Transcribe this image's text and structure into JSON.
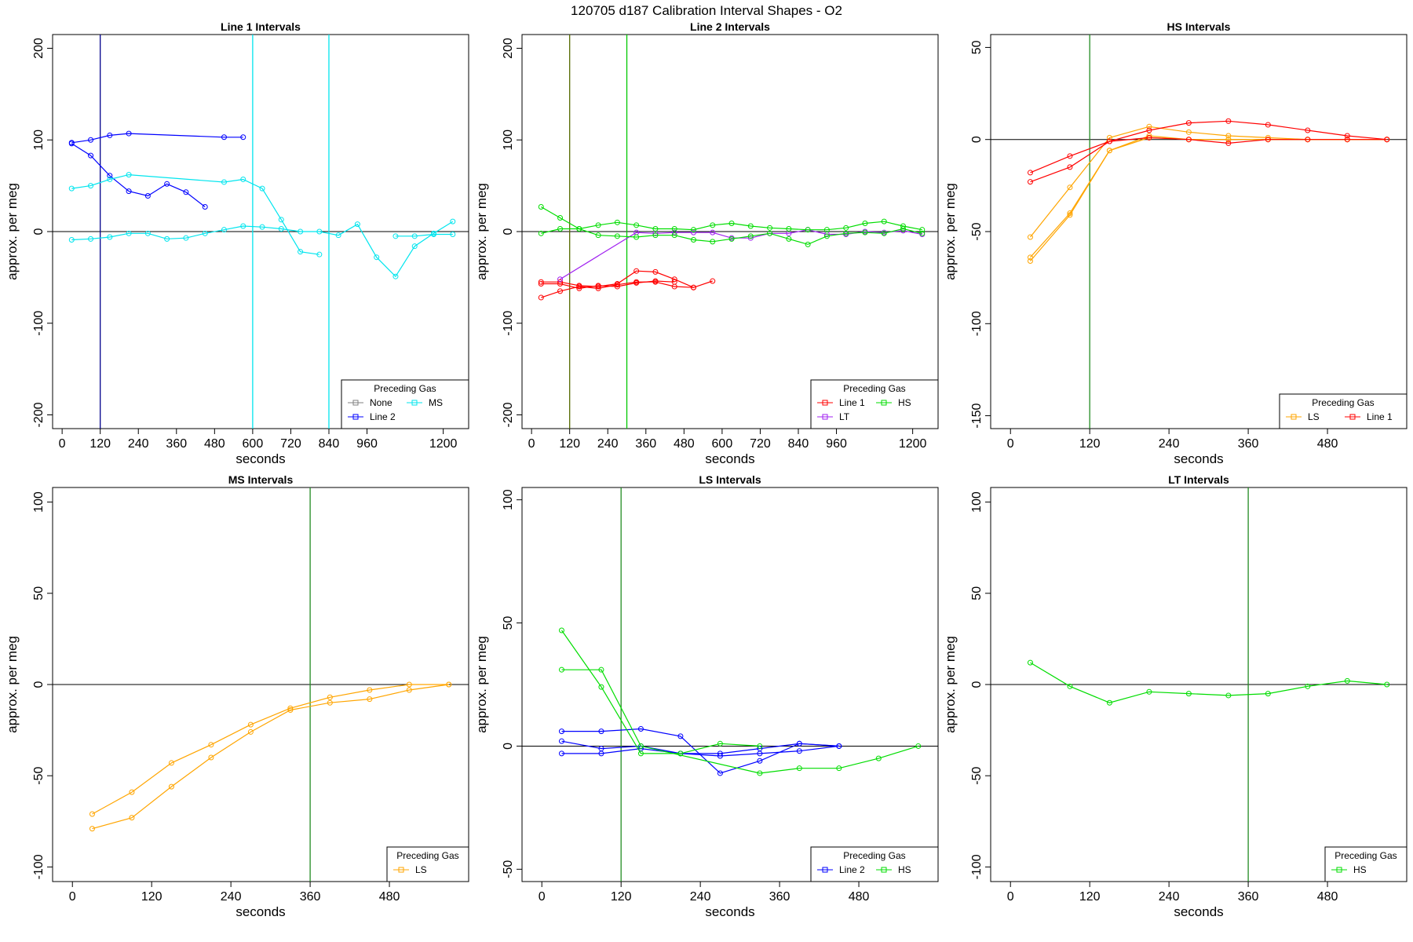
{
  "figure": {
    "title": "120705   d187   Calibration Interval Shapes - O2"
  },
  "colors": {
    "None": "#808080",
    "Line 1": "#ff0000",
    "Line 2": "#0000ff",
    "HS": "#00dd00",
    "MS": "#00e5ee",
    "LS": "#ffa500",
    "LT": "#a020f0"
  },
  "chart_data": [
    {
      "type": "line",
      "title": "Line 1 Intervals",
      "xlabel": "seconds",
      "ylabel": "approx. per meg",
      "xlim": [
        -30,
        1280
      ],
      "ylim": [
        -215,
        215
      ],
      "xticks": [
        0,
        120,
        240,
        360,
        480,
        600,
        720,
        840,
        960,
        1200
      ],
      "yticks": [
        -200,
        -100,
        0,
        100,
        200
      ],
      "vlines": [
        {
          "x": 120,
          "color": "#00008b"
        },
        {
          "x": 600,
          "color": "#00e5ee"
        },
        {
          "x": 840,
          "color": "#00e5ee"
        }
      ],
      "legend": {
        "title": "Preceding Gas",
        "position": "bottom-right",
        "columns": 2,
        "items": [
          "None",
          "Line 2",
          "MS"
        ]
      },
      "series": [
        {
          "gas": "Line 2",
          "x": [
            30,
            90,
            150,
            210,
            510,
            570
          ],
          "y": [
            97,
            100,
            105,
            107,
            103,
            103
          ]
        },
        {
          "gas": "Line 2",
          "x": [
            30,
            90,
            150,
            210,
            270,
            330,
            390,
            450
          ],
          "y": [
            96,
            83,
            61,
            44,
            39,
            52,
            43,
            27
          ]
        },
        {
          "gas": "MS",
          "x": [
            30,
            90,
            150,
            210,
            510,
            570,
            630,
            690,
            750,
            810
          ],
          "y": [
            47,
            50,
            57,
            62,
            54,
            57,
            47,
            13,
            -22,
            -25
          ]
        },
        {
          "gas": "MS",
          "x": [
            30,
            90,
            150,
            210,
            270,
            330,
            390,
            450,
            510,
            570,
            630,
            690,
            750,
            810,
            870,
            930,
            990,
            1050,
            1110,
            1170,
            1230
          ],
          "y": [
            -9,
            -8,
            -6,
            -2,
            -2,
            -8,
            -7,
            -2,
            2,
            6,
            5,
            3,
            0,
            0,
            -4,
            8,
            -28,
            -49,
            -16,
            -2,
            11
          ]
        },
        {
          "gas": "MS",
          "x": [
            1050,
            1110,
            1170,
            1230
          ],
          "y": [
            -5,
            -5,
            -3,
            -3
          ]
        }
      ]
    },
    {
      "type": "line",
      "title": "Line 2 Intervals",
      "xlabel": "seconds",
      "ylabel": "approx. per meg",
      "xlim": [
        -30,
        1280
      ],
      "ylim": [
        -215,
        215
      ],
      "xticks": [
        0,
        120,
        240,
        360,
        480,
        600,
        720,
        840,
        960,
        1200
      ],
      "yticks": [
        -200,
        -100,
        0,
        100,
        200
      ],
      "vlines": [
        {
          "x": 120,
          "color": "#556b00"
        },
        {
          "x": 300,
          "color": "#00c800"
        }
      ],
      "legend": {
        "title": "Preceding Gas",
        "position": "bottom-right",
        "columns": 2,
        "items": [
          "Line 1",
          "LT",
          "HS"
        ]
      },
      "series": [
        {
          "gas": "Line 1",
          "x": [
            30,
            90,
            150,
            210,
            270,
            330,
            390,
            450,
            510
          ],
          "y": [
            -72,
            -65,
            -60,
            -62,
            -58,
            -55,
            -55,
            -60,
            -61
          ]
        },
        {
          "gas": "Line 1",
          "x": [
            30,
            90,
            150,
            210,
            270,
            330,
            390,
            450,
            510,
            570
          ],
          "y": [
            -55,
            -55,
            -59,
            -60,
            -57,
            -43,
            -44,
            -52,
            -61,
            -54
          ]
        },
        {
          "gas": "Line 1",
          "x": [
            30,
            90,
            150,
            210,
            270,
            330,
            390,
            450
          ],
          "y": [
            -57,
            -57,
            -62,
            -59,
            -60,
            -56,
            -54,
            -55
          ]
        },
        {
          "gas": "LT",
          "x": [
            90,
            330,
            390,
            450,
            510,
            570,
            630,
            690,
            750,
            810,
            870,
            930,
            990,
            1050,
            1110,
            1170,
            1230
          ],
          "y": [
            -52,
            -1,
            -2,
            -1,
            -1,
            -1,
            -7,
            -7,
            -2,
            -2,
            2,
            -3,
            -3,
            0,
            -1,
            1,
            -3
          ]
        },
        {
          "gas": "HS",
          "x": [
            30,
            90,
            150,
            210,
            270,
            330,
            390,
            450,
            510,
            570,
            630,
            690,
            750,
            810,
            870,
            930,
            990,
            1050,
            1110,
            1170,
            1230
          ],
          "y": [
            27,
            15,
            3,
            7,
            10,
            7,
            3,
            3,
            2,
            7,
            9,
            6,
            4,
            3,
            2,
            2,
            4,
            9,
            11,
            6,
            2
          ]
        },
        {
          "gas": "HS",
          "x": [
            30,
            90,
            150,
            210,
            270,
            330,
            390,
            450,
            510,
            570,
            630,
            690,
            750,
            810,
            870,
            930,
            990,
            1050,
            1110,
            1170,
            1230
          ],
          "y": [
            -2,
            3,
            3,
            -4,
            -5,
            -6,
            -4,
            -4,
            -9,
            -11,
            -8,
            -5,
            -2,
            -8,
            -14,
            -5,
            -2,
            -1,
            -2,
            3,
            -2
          ]
        }
      ]
    },
    {
      "type": "line",
      "title": "HS Intervals",
      "xlabel": "seconds",
      "ylabel": "approx. per meg",
      "xlim": [
        -30,
        600
      ],
      "ylim": [
        -157,
        57
      ],
      "xticks": [
        0,
        120,
        240,
        360,
        480
      ],
      "yticks": [
        -150,
        -100,
        -50,
        0,
        50
      ],
      "vlines": [
        {
          "x": 120,
          "color": "#228b22"
        }
      ],
      "legend": {
        "title": "Preceding Gas",
        "position": "bottom-right",
        "columns": 2,
        "items": [
          "LS",
          "Line 1"
        ]
      },
      "series": [
        {
          "gas": "LS",
          "x": [
            30,
            90,
            150,
            210,
            270,
            330,
            390,
            450,
            510,
            570
          ],
          "y": [
            -53,
            -26,
            1,
            7,
            4,
            2,
            1,
            0,
            0,
            0
          ]
        },
        {
          "gas": "LS",
          "x": [
            30,
            90,
            150,
            210,
            270,
            330,
            390,
            450,
            510,
            570
          ],
          "y": [
            -64,
            -40,
            -6,
            2,
            0,
            0,
            0,
            0,
            0,
            0
          ]
        },
        {
          "gas": "LS",
          "x": [
            30,
            90,
            150,
            210,
            270,
            330,
            390,
            450,
            510,
            570
          ],
          "y": [
            -66,
            -41,
            -6,
            1,
            0,
            0,
            0,
            0,
            0,
            0
          ]
        },
        {
          "gas": "Line 1",
          "x": [
            30,
            90,
            150,
            210,
            270,
            330,
            390,
            450,
            510,
            570
          ],
          "y": [
            -18,
            -9,
            -1,
            5,
            9,
            10,
            8,
            5,
            2,
            0
          ]
        },
        {
          "gas": "Line 1",
          "x": [
            30,
            90,
            150,
            210,
            270,
            330,
            390,
            450,
            510,
            570
          ],
          "y": [
            -23,
            -15,
            -1,
            1,
            0,
            -2,
            0,
            0,
            0,
            0
          ]
        }
      ]
    },
    {
      "type": "line",
      "title": "MS Intervals",
      "xlabel": "seconds",
      "ylabel": "approx. per meg",
      "xlim": [
        -30,
        600
      ],
      "ylim": [
        -108,
        108
      ],
      "xticks": [
        0,
        120,
        240,
        360,
        480
      ],
      "yticks": [
        -100,
        -50,
        0,
        50,
        100
      ],
      "vlines": [
        {
          "x": 360,
          "color": "#228b22"
        }
      ],
      "legend": {
        "title": "Preceding Gas",
        "position": "bottom-right",
        "columns": 1,
        "items": [
          "LS"
        ]
      },
      "series": [
        {
          "gas": "LS",
          "x": [
            30,
            90,
            150,
            210,
            270,
            330,
            390,
            450,
            510,
            570
          ],
          "y": [
            -71,
            -59,
            -43,
            -33,
            -22,
            -13,
            -7,
            -3,
            0,
            0
          ]
        },
        {
          "gas": "LS",
          "x": [
            30,
            90,
            150,
            210,
            270,
            330,
            390,
            450,
            510,
            570
          ],
          "y": [
            -79,
            -73,
            -56,
            -40,
            -26,
            -14,
            -10,
            -8,
            -3,
            0
          ]
        }
      ]
    },
    {
      "type": "line",
      "title": "LS Intervals",
      "xlabel": "seconds",
      "ylabel": "approx. per meg",
      "xlim": [
        -30,
        600
      ],
      "ylim": [
        -55,
        105
      ],
      "xticks": [
        0,
        120,
        240,
        360,
        480
      ],
      "yticks": [
        -50,
        0,
        50,
        100
      ],
      "vlines": [
        {
          "x": 120,
          "color": "#228b22"
        }
      ],
      "legend": {
        "title": "Preceding Gas",
        "position": "bottom-right",
        "columns": 2,
        "items": [
          "Line 2",
          "HS"
        ]
      },
      "series": [
        {
          "gas": "Line 2",
          "x": [
            30,
            90,
            150,
            210,
            270,
            330,
            390,
            450
          ],
          "y": [
            6,
            6,
            7,
            4,
            -11,
            -6,
            1,
            0
          ]
        },
        {
          "gas": "Line 2",
          "x": [
            30,
            90,
            150,
            210,
            270,
            330,
            390,
            450
          ],
          "y": [
            2,
            -1,
            0,
            -3,
            -3,
            -1,
            1,
            0
          ]
        },
        {
          "gas": "Line 2",
          "x": [
            30,
            90,
            150,
            210,
            270,
            330,
            390,
            450
          ],
          "y": [
            -3,
            -3,
            -1,
            -3,
            -4,
            -3,
            -2,
            0
          ]
        },
        {
          "gas": "HS",
          "x": [
            30,
            90,
            150,
            210,
            270,
            330
          ],
          "y": [
            47,
            24,
            -3,
            -3,
            1,
            0
          ]
        },
        {
          "gas": "HS",
          "x": [
            30,
            90,
            150,
            330,
            390,
            450,
            510,
            570
          ],
          "y": [
            31,
            31,
            0,
            -11,
            -9,
            -9,
            -5,
            0
          ]
        }
      ]
    },
    {
      "type": "line",
      "title": "LT Intervals",
      "xlabel": "seconds",
      "ylabel": "approx. per meg",
      "xlim": [
        -30,
        600
      ],
      "ylim": [
        -108,
        108
      ],
      "xticks": [
        0,
        120,
        240,
        360,
        480
      ],
      "yticks": [
        -100,
        -50,
        0,
        50,
        100
      ],
      "vlines": [
        {
          "x": 360,
          "color": "#228b22"
        }
      ],
      "legend": {
        "title": "Preceding Gas",
        "position": "bottom-right",
        "columns": 1,
        "items": [
          "HS"
        ]
      },
      "series": [
        {
          "gas": "HS",
          "x": [
            30,
            90,
            150,
            210,
            270,
            330,
            390,
            450,
            510,
            570
          ],
          "y": [
            12,
            -1,
            -10,
            -4,
            -5,
            -6,
            -5,
            -1,
            2,
            0
          ]
        }
      ]
    }
  ]
}
